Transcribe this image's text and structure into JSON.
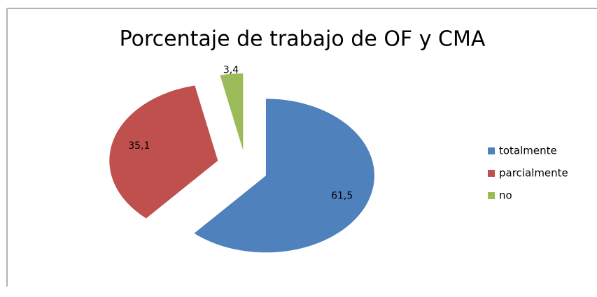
{
  "chart_data": {
    "type": "pie",
    "title": "Porcentaje de trabajo de OF y CMA",
    "categories": [
      "totalmente",
      "parcialmente",
      "no"
    ],
    "values": [
      61.5,
      35.1,
      3.4
    ],
    "value_labels": [
      "61,5",
      "35,1",
      "3,4"
    ],
    "colors": [
      "#4f81bd",
      "#c0504d",
      "#9bbb59"
    ],
    "legend": "right"
  }
}
